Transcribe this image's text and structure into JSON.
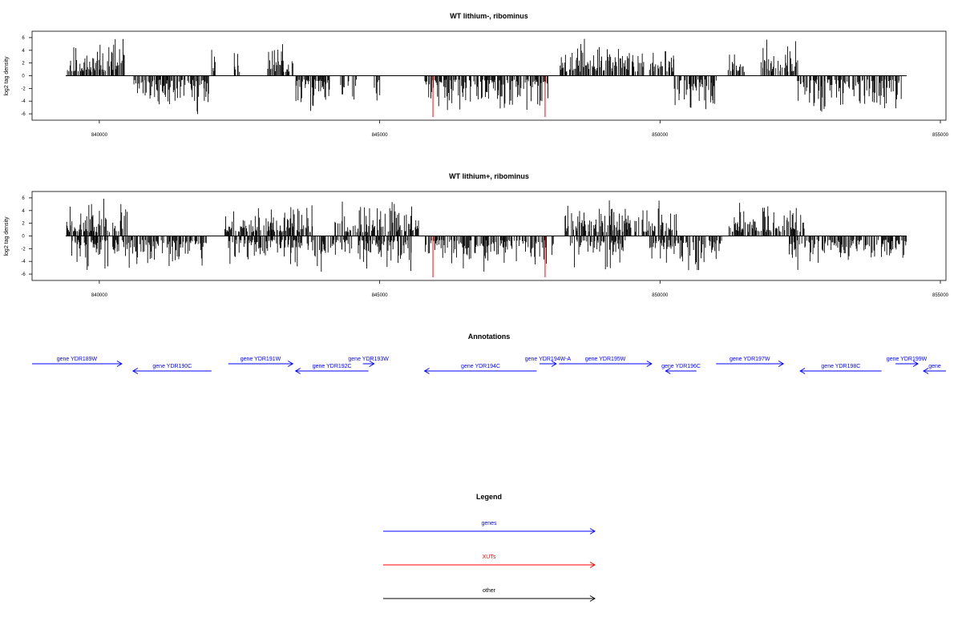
{
  "colors": {
    "gene": "#0000ff",
    "xut": "#ff0000",
    "other": "#000000",
    "bars": "#000000"
  },
  "chart_data": [
    {
      "type": "bar",
      "title": "WT lithium-, ribominus",
      "ylabel": "log2 tag density",
      "xlim": [
        838800,
        855100
      ],
      "ylim": [
        -7,
        7
      ],
      "xticks": [
        "840000",
        "845000",
        "850000",
        "855000"
      ],
      "yticks": [
        "6",
        "4",
        "2",
        "0",
        "-2",
        "-4",
        "-6"
      ],
      "data_range": [
        839400,
        854400
      ],
      "positive_coverage": [
        [
          839400,
          840450
        ],
        [
          842000,
          842100
        ],
        [
          842400,
          842500
        ],
        [
          843000,
          843450
        ],
        [
          848200,
          849700
        ],
        [
          849800,
          850250
        ],
        [
          851200,
          851500
        ],
        [
          851800,
          852450
        ]
      ],
      "negative_coverage": [
        [
          840600,
          841950
        ],
        [
          843500,
          844100
        ],
        [
          844300,
          844600
        ],
        [
          844900,
          845000
        ],
        [
          845800,
          848000
        ],
        [
          850250,
          851000
        ],
        [
          852450,
          854300
        ]
      ],
      "xut_marks": [
        {
          "x": 845950,
          "y": -6.5
        },
        {
          "x": 847950,
          "y": -6.5
        }
      ],
      "seed": 11
    },
    {
      "type": "bar",
      "title": "WT lithium+, ribominus",
      "ylabel": "log2 tag density",
      "xlim": [
        838800,
        855100
      ],
      "ylim": [
        -7,
        7
      ],
      "xticks": [
        "840000",
        "845000",
        "850000",
        "855000"
      ],
      "yticks": [
        "6",
        "4",
        "2",
        "0",
        "-2",
        "-4",
        "-6"
      ],
      "data_range": [
        839400,
        854400
      ],
      "positive_coverage": [
        [
          839400,
          840500
        ],
        [
          842200,
          843800
        ],
        [
          844200,
          845700
        ],
        [
          848300,
          850300
        ],
        [
          851200,
          852600
        ]
      ],
      "negative_coverage": [
        [
          839500,
          841900
        ],
        [
          842300,
          844500
        ],
        [
          844600,
          845600
        ],
        [
          845800,
          848100
        ],
        [
          848400,
          849400
        ],
        [
          849800,
          851100
        ],
        [
          852300,
          854400
        ]
      ],
      "xut_marks": [
        {
          "x": 845950,
          "y": -6.5
        },
        {
          "x": 847950,
          "y": -6.5
        }
      ],
      "seed": 23
    }
  ],
  "annotations": {
    "title": "Annotations",
    "genes": [
      {
        "label": "gene YDR189W",
        "start": 838800,
        "end": 840400,
        "strand": "+",
        "row": 0
      },
      {
        "label": "gene YDR190C",
        "start": 840600,
        "end": 842000,
        "strand": "-",
        "row": 1
      },
      {
        "label": "gene YDR191W",
        "start": 842300,
        "end": 843450,
        "strand": "+",
        "row": 0
      },
      {
        "label": "gene YDR192C",
        "start": 843500,
        "end": 844800,
        "strand": "-",
        "row": 1
      },
      {
        "label": "gene YDR193W",
        "start": 844700,
        "end": 844900,
        "strand": "+",
        "row": 0
      },
      {
        "label": "gene YDR194C",
        "start": 845800,
        "end": 847800,
        "strand": "-",
        "row": 1
      },
      {
        "label": "gene YDR194W-A",
        "start": 847850,
        "end": 848150,
        "strand": "+",
        "row": 0
      },
      {
        "label": "gene YDR195W",
        "start": 848200,
        "end": 849850,
        "strand": "+",
        "row": 0
      },
      {
        "label": "gene YDR196C",
        "start": 850100,
        "end": 850650,
        "strand": "-",
        "row": 1
      },
      {
        "label": "gene YDR197W",
        "start": 851000,
        "end": 852200,
        "strand": "+",
        "row": 0
      },
      {
        "label": "gene YDR198C",
        "start": 852500,
        "end": 853950,
        "strand": "-",
        "row": 1
      },
      {
        "label": "gene YDR199W",
        "start": 854200,
        "end": 854600,
        "strand": "+",
        "row": 0
      },
      {
        "label": "gene",
        "start": 854700,
        "end": 855100,
        "strand": "-",
        "row": 1
      }
    ]
  },
  "legend": {
    "title": "Legend",
    "items": [
      {
        "label": "genes",
        "type": "gene"
      },
      {
        "label": "XUTs",
        "type": "xut"
      },
      {
        "label": "other",
        "type": "other"
      }
    ]
  }
}
